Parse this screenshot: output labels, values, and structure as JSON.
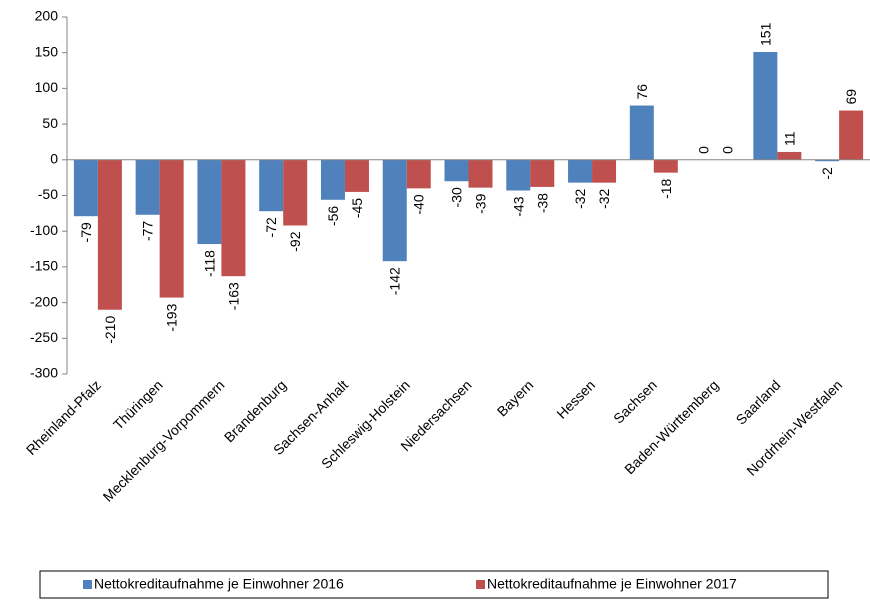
{
  "chart_data": {
    "type": "bar",
    "categories": [
      "Rheinland-Pfalz",
      "Thüringen",
      "Mecklenburg-Vorpommern",
      "Brandenburg",
      "Sachsen-Anhalt",
      "Schleswig-Holstein",
      "Niedersachsen",
      "Bayern",
      "Hessen",
      "Sachsen",
      "Baden-Württemberg",
      "Saarland",
      "Nordrhein-Westfalen"
    ],
    "series": [
      {
        "name": "Nettokreditaufnahme je Einwohner 2016",
        "color": "#4f81bd",
        "values": [
          -79,
          -77,
          -118,
          -72,
          -56,
          -142,
          -30,
          -43,
          -32,
          76,
          0,
          151,
          -2
        ]
      },
      {
        "name": "Nettokreditaufnahme je Einwohner 2017",
        "color": "#c0504d",
        "values": [
          -210,
          -193,
          -163,
          -92,
          -45,
          -40,
          -39,
          -38,
          -32,
          -18,
          0,
          11,
          69
        ]
      }
    ],
    "ylim": [
      -300,
      200
    ],
    "yticks": [
      -300,
      -250,
      -200,
      -150,
      -100,
      -50,
      0,
      50,
      100,
      150,
      200
    ],
    "grid": false,
    "legend": "bottom"
  }
}
